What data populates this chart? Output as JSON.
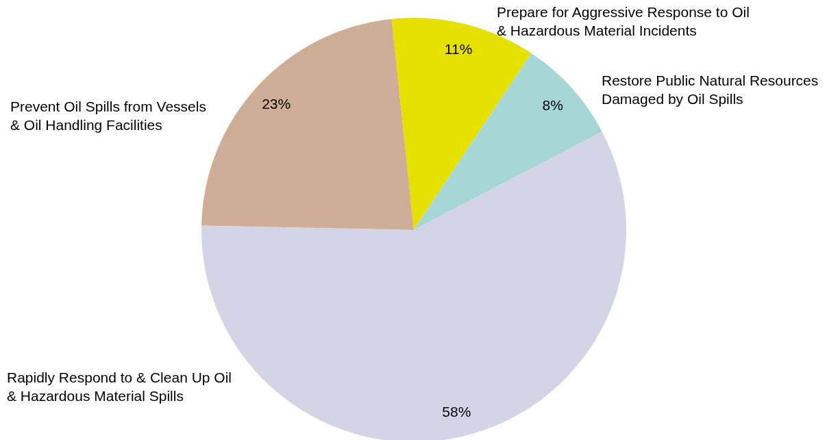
{
  "chart_data": {
    "type": "pie",
    "categories": [
      "Prepare for Aggressive Response to Oil & Hazardous Material Incidents",
      "Restore Public Natural Resources Damaged by Oil Spills",
      "Rapidly Respond to & Clean Up Oil & Hazardous Material Spills",
      "Prevent Oil Spills from Vessels & Oil Handling Facilities"
    ],
    "values": [
      11,
      8,
      58,
      23
    ],
    "value_labels": [
      "11%",
      "8%",
      "58%",
      "23%"
    ],
    "colors": [
      "#e6e000",
      "#a6d6d6",
      "#d4d4e6",
      "#cfae98"
    ]
  }
}
